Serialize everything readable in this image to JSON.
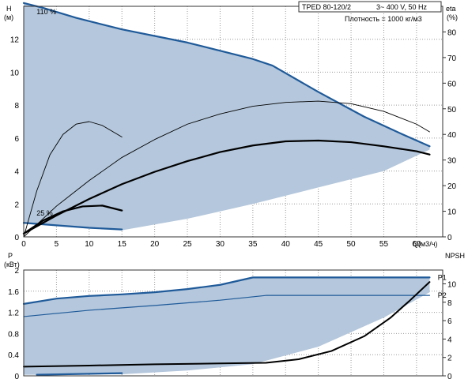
{
  "header": {
    "model": "TPED 80-120/2",
    "supply": "3~ 400 V, 50 Hz",
    "density": "Плотность = 1000 кг/м3"
  },
  "colors": {
    "area": "#b4c7dc",
    "grid": "#9a9a9a",
    "accent": "#1f5a99",
    "curve": "#000000"
  },
  "chart_data": [
    {
      "type": "line",
      "xlim": [
        0,
        64
      ],
      "ylim": [
        0,
        14
      ],
      "y2lim": [
        0,
        90
      ],
      "x_ticks": [
        0,
        5,
        10,
        15,
        20,
        25,
        30,
        35,
        40,
        45,
        50,
        55,
        60
      ],
      "y_ticks": [
        0,
        2,
        4,
        6,
        8,
        10,
        12
      ],
      "y2_ticks": [
        0,
        10,
        20,
        30,
        40,
        50,
        60,
        70,
        80
      ],
      "ylabel": "H",
      "ylabel_unit": "(м)",
      "y2label": "eta",
      "y2label_unit": "(%)",
      "xlabel": "Q(м3/ч)",
      "annotations": [
        {
          "text": "110 %",
          "x": 1,
          "y": 13.9
        },
        {
          "text": "25 %",
          "x": 1,
          "y": 0.9
        }
      ],
      "area": {
        "upper": [
          [
            0,
            14.2
          ],
          [
            3,
            13.9
          ],
          [
            8,
            13.3
          ],
          [
            15,
            12.6
          ],
          [
            25,
            11.8
          ],
          [
            35,
            10.8
          ],
          [
            38,
            10.4
          ],
          [
            45,
            8.8
          ],
          [
            52,
            7.3
          ],
          [
            58,
            6.2
          ],
          [
            62,
            5.5
          ]
        ],
        "lower_right": [
          [
            62,
            5.3
          ],
          [
            55,
            4.0
          ],
          [
            45,
            3.0
          ],
          [
            35,
            2.0
          ],
          [
            25,
            1.1
          ],
          [
            15,
            0.4
          ]
        ],
        "lower_left": [
          [
            15,
            0.4
          ],
          [
            10,
            0.55
          ],
          [
            5,
            0.7
          ],
          [
            0,
            0.85
          ]
        ]
      },
      "series": [
        {
          "role": "head-max",
          "axis": "left",
          "points": [
            [
              0,
              14.2
            ],
            [
              3,
              13.9
            ],
            [
              8,
              13.3
            ],
            [
              15,
              12.6
            ],
            [
              25,
              11.8
            ],
            [
              35,
              10.8
            ],
            [
              38,
              10.4
            ],
            [
              45,
              8.8
            ],
            [
              52,
              7.3
            ],
            [
              58,
              6.2
            ],
            [
              62,
              5.5
            ]
          ]
        },
        {
          "role": "head-min",
          "axis": "left",
          "points": [
            [
              0,
              0.85
            ],
            [
              5,
              0.7
            ],
            [
              10,
              0.55
            ],
            [
              15,
              0.45
            ]
          ]
        },
        {
          "role": "head-duty",
          "axis": "left",
          "points": [
            [
              0,
              0.2
            ],
            [
              5,
              1.3
            ],
            [
              10,
              2.3
            ],
            [
              15,
              3.2
            ],
            [
              20,
              3.95
            ],
            [
              25,
              4.6
            ],
            [
              30,
              5.15
            ],
            [
              35,
              5.55
            ],
            [
              40,
              5.8
            ],
            [
              45,
              5.85
            ],
            [
              50,
              5.75
            ],
            [
              55,
              5.5
            ],
            [
              60,
              5.2
            ],
            [
              62,
              5.0
            ]
          ]
        },
        {
          "role": "head-small",
          "axis": "left",
          "points": [
            [
              0,
              0.2
            ],
            [
              3,
              1.0
            ],
            [
              6,
              1.55
            ],
            [
              9,
              1.85
            ],
            [
              12,
              1.9
            ],
            [
              15,
              1.6
            ]
          ]
        },
        {
          "role": "eta-duty",
          "axis": "right",
          "points": [
            [
              0,
              0
            ],
            [
              5,
              12
            ],
            [
              10,
              22
            ],
            [
              15,
              31
            ],
            [
              20,
              38
            ],
            [
              25,
              44
            ],
            [
              30,
              48
            ],
            [
              35,
              51
            ],
            [
              40,
              52.5
            ],
            [
              45,
              53
            ],
            [
              50,
              52
            ],
            [
              55,
              49
            ],
            [
              60,
              44
            ],
            [
              62,
              41
            ]
          ]
        },
        {
          "role": "eta-small",
          "axis": "right",
          "points": [
            [
              0,
              0
            ],
            [
              2,
              18
            ],
            [
              4,
              32
            ],
            [
              6,
              40
            ],
            [
              8,
              44
            ],
            [
              10,
              45
            ],
            [
              12,
              43.5
            ],
            [
              15,
              39
            ]
          ]
        }
      ]
    },
    {
      "type": "line",
      "xlim": [
        0,
        64
      ],
      "ylim": [
        0,
        2
      ],
      "y2lim": [
        0,
        11.5
      ],
      "y_ticks": [
        0,
        0.4,
        0.8,
        1.2,
        1.6,
        2
      ],
      "y2_ticks": [
        0,
        2,
        4,
        6,
        8,
        10
      ],
      "ylabel": "P",
      "ylabel_unit": "(кВт)",
      "y2label": "NPSH",
      "labels": [
        {
          "text": "P1",
          "x": 63,
          "y": 1.86
        },
        {
          "text": "P2",
          "x": 63,
          "y": 1.52
        }
      ],
      "area": {
        "upper": [
          [
            0,
            1.36
          ],
          [
            5,
            1.46
          ],
          [
            10,
            1.51
          ],
          [
            15,
            1.54
          ],
          [
            20,
            1.58
          ],
          [
            25,
            1.64
          ],
          [
            30,
            1.72
          ],
          [
            35,
            1.86
          ],
          [
            62,
            1.86
          ]
        ],
        "lower": [
          [
            62,
            1.58
          ],
          [
            55,
            1.1
          ],
          [
            45,
            0.55
          ],
          [
            35,
            0.22
          ],
          [
            25,
            0.1
          ],
          [
            15,
            0.03
          ]
        ],
        "left": [
          [
            15,
            0.03
          ],
          [
            10,
            0.03
          ],
          [
            5,
            0.02
          ],
          [
            0,
            0.02
          ]
        ]
      },
      "series": [
        {
          "role": "P1-max",
          "axis": "left",
          "points": [
            [
              0,
              1.36
            ],
            [
              5,
              1.46
            ],
            [
              10,
              1.51
            ],
            [
              15,
              1.54
            ],
            [
              20,
              1.58
            ],
            [
              25,
              1.64
            ],
            [
              30,
              1.72
            ],
            [
              35,
              1.86
            ],
            [
              62,
              1.86
            ]
          ]
        },
        {
          "role": "P2-max",
          "axis": "left",
          "points": [
            [
              0,
              1.12
            ],
            [
              10,
              1.24
            ],
            [
              20,
              1.33
            ],
            [
              30,
              1.43
            ],
            [
              37,
              1.52
            ],
            [
              62,
              1.52
            ]
          ]
        },
        {
          "role": "P1-small",
          "axis": "left",
          "points": [
            [
              2,
              0.02
            ],
            [
              15,
              0.05
            ]
          ]
        },
        {
          "role": "NPSH",
          "axis": "right",
          "points": [
            [
              0,
              1.0
            ],
            [
              10,
              1.12
            ],
            [
              20,
              1.25
            ],
            [
              30,
              1.35
            ],
            [
              37,
              1.42
            ],
            [
              42,
              1.8
            ],
            [
              47,
              2.7
            ],
            [
              52,
              4.3
            ],
            [
              56,
              6.3
            ],
            [
              59,
              8.2
            ],
            [
              62,
              10.2
            ]
          ]
        }
      ]
    }
  ]
}
